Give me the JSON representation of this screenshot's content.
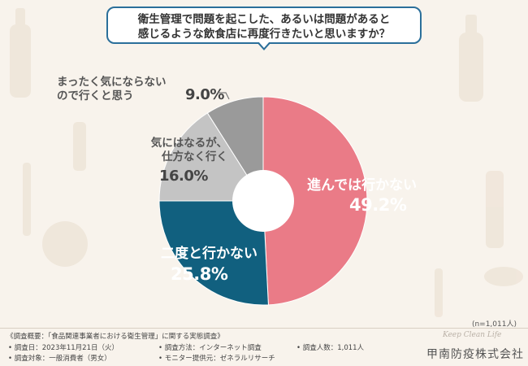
{
  "question": {
    "line1": "衛生管理で問題を起こした、あるいは問題があると",
    "line2": "感じるような飲食店に再度行きたいと思いますか？"
  },
  "colors": {
    "slice_1": "#ea7b87",
    "slice_2": "#11607f",
    "slice_3": "#c4c4c4",
    "slice_4": "#9a9a9a",
    "accent": "#2b6f9a"
  },
  "chart_data": {
    "type": "pie",
    "title": "衛生管理で問題を起こした、あるいは問題があると感じるような飲食店に再度行きたいと思いますか？",
    "donut": true,
    "slices": [
      {
        "label": "進んでは行かない",
        "value": 49.2,
        "display": "49.2%"
      },
      {
        "label": "二度と行かない",
        "value": 25.8,
        "display": "25.8%"
      },
      {
        "label_lines": [
          "気にはなるが、",
          "仕方なく行く"
        ],
        "value": 16.0,
        "display": "16.0%"
      },
      {
        "label_lines": [
          "まったく気にならない",
          "ので行くと思う"
        ],
        "value": 9.0,
        "display": "9.0%"
      }
    ],
    "sample_size": "(n=1,011人)"
  },
  "footer": {
    "overview": "《調査概要：「食品関連事業者における衛生管理」に関する実態調査》",
    "date": "• 調査日：2023年11月21日（火）",
    "method": "• 調査方法：インターネット調査",
    "count": "• 調査人数：1,011人",
    "target": "• 調査対象：一般消費者（男女）",
    "provider": "• モニター提供元：ゼネラルリサーチ",
    "brand_script": "Keep Clean Life",
    "brand": "甲南防疫株式会社"
  }
}
